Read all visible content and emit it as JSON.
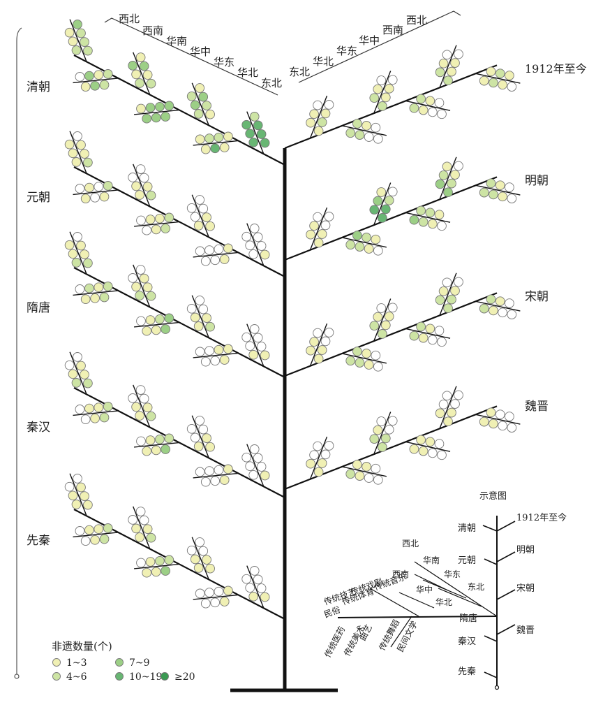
{
  "chart_data": {
    "type": "tree",
    "title": "",
    "period_labels_left": [
      "清朝",
      "元朝",
      "隋唐",
      "秦汉",
      "先秦"
    ],
    "period_labels_right": [
      "1912年至今",
      "明朝",
      "宋朝",
      "魏晋"
    ],
    "region_labels_top_left": [
      "西北",
      "西南",
      "华南",
      "华中",
      "华东",
      "华北",
      "东北"
    ],
    "region_labels_top_right": [
      "东北",
      "华北",
      "华东",
      "华中",
      "西南",
      "西北"
    ],
    "legend": {
      "title": "非遗数量(个)",
      "items": [
        {
          "label": "1~3",
          "level": 1,
          "color": "#f0f0b4"
        },
        {
          "label": "7~9",
          "level": 3,
          "color": "#9ccf86"
        },
        {
          "label": "4~6",
          "level": 2,
          "color": "#cde4a4"
        },
        {
          "label": "10~19",
          "level": 4,
          "color": "#68b673"
        },
        {
          "label": "≥20",
          "level": 5,
          "color": "#3a9a52"
        }
      ],
      "empty_color": "#ffffff"
    },
    "schematic": {
      "title": "示意图",
      "left_periods": [
        "清朝",
        "元朝",
        "隋唐",
        "秦汉",
        "先秦"
      ],
      "right_periods": [
        "1912年至今",
        "明朝",
        "宋朝",
        "魏晋"
      ],
      "regions": [
        "西北",
        "华南",
        "西南",
        "华东",
        "华中",
        "东北",
        "华北"
      ],
      "categories_upper": [
        "传统音乐",
        "传统戏剧",
        "传统体育",
        "传统技艺",
        "民俗"
      ],
      "categories_lower": [
        "传统医药",
        "传统美术",
        "曲艺",
        "传统舞蹈",
        "民间文学"
      ]
    },
    "branches": [
      {
        "period": "清朝",
        "side": "left",
        "counts": [
          [
            2,
            2,
            2,
            1,
            2,
            1,
            3,
            0,
            0,
            0
          ],
          [
            2,
            2,
            1,
            3,
            3,
            1,
            0,
            0,
            0,
            0
          ],
          [
            2,
            2,
            1,
            1,
            3,
            3,
            1,
            0,
            0,
            0
          ],
          [
            3,
            3,
            3,
            3,
            3,
            3,
            1,
            0,
            0,
            0
          ],
          [
            1,
            2,
            2,
            3,
            3,
            2,
            1,
            0,
            0,
            0
          ],
          [
            1,
            1,
            2,
            4,
            2,
            1,
            1,
            0,
            0,
            0
          ],
          [
            4,
            4,
            4,
            4,
            4,
            4,
            2,
            0,
            0,
            0
          ]
        ]
      },
      {
        "period": "元朝",
        "side": "left",
        "counts": [
          [
            2,
            1,
            1,
            1,
            1,
            1,
            0,
            0,
            0,
            0
          ],
          [
            2,
            1,
            0,
            0,
            1,
            1,
            0,
            0,
            0,
            0
          ],
          [
            2,
            1,
            1,
            1,
            0,
            0,
            0,
            0,
            0,
            0
          ],
          [
            2,
            2,
            1,
            1,
            1,
            0,
            0,
            0,
            0,
            0
          ],
          [
            1,
            1,
            1,
            0,
            0,
            0,
            0,
            0,
            0,
            0
          ],
          [
            1,
            1,
            0,
            0,
            0,
            0,
            0,
            0,
            0,
            0
          ],
          [
            1,
            0,
            0,
            0,
            0,
            0,
            0,
            0,
            0,
            0
          ]
        ]
      },
      {
        "period": "隋唐",
        "side": "left",
        "counts": [
          [
            2,
            2,
            1,
            1,
            1,
            1,
            0,
            0,
            0,
            0
          ],
          [
            2,
            2,
            1,
            1,
            2,
            1,
            0,
            0,
            0,
            0
          ],
          [
            2,
            2,
            1,
            1,
            1,
            0,
            0,
            0,
            0,
            0
          ],
          [
            3,
            3,
            2,
            1,
            1,
            1,
            0,
            0,
            0,
            0
          ],
          [
            2,
            1,
            1,
            1,
            0,
            0,
            0,
            0,
            0,
            0
          ],
          [
            1,
            1,
            1,
            0,
            0,
            0,
            0,
            0,
            0,
            0
          ],
          [
            1,
            1,
            0,
            0,
            0,
            0,
            0,
            0,
            0,
            0
          ]
        ]
      },
      {
        "period": "秦汉",
        "side": "left",
        "counts": [
          [
            2,
            2,
            1,
            1,
            1,
            0,
            0,
            0,
            0,
            0
          ],
          [
            2,
            2,
            1,
            1,
            1,
            0,
            0,
            0,
            0,
            0
          ],
          [
            2,
            1,
            1,
            1,
            0,
            0,
            0,
            0,
            0,
            0
          ],
          [
            2,
            3,
            2,
            1,
            1,
            1,
            0,
            0,
            0,
            0
          ],
          [
            1,
            1,
            1,
            0,
            0,
            0,
            0,
            0,
            0,
            0
          ],
          [
            1,
            1,
            0,
            0,
            0,
            0,
            0,
            0,
            0,
            0
          ],
          [
            1,
            0,
            0,
            0,
            0,
            0,
            0,
            0,
            0,
            0
          ]
        ]
      },
      {
        "period": "先秦",
        "side": "left",
        "counts": [
          [
            1,
            1,
            1,
            1,
            1,
            0,
            0,
            0,
            0,
            0
          ],
          [
            2,
            2,
            1,
            1,
            1,
            0,
            0,
            0,
            0,
            0
          ],
          [
            2,
            1,
            1,
            1,
            0,
            0,
            0,
            0,
            0,
            0
          ],
          [
            2,
            3,
            2,
            1,
            1,
            1,
            0,
            0,
            0,
            0
          ],
          [
            1,
            1,
            1,
            1,
            0,
            0,
            0,
            0,
            0,
            0
          ],
          [
            1,
            1,
            0,
            0,
            0,
            0,
            0,
            0,
            0,
            0
          ],
          [
            1,
            1,
            0,
            0,
            0,
            0,
            0,
            0,
            0,
            0
          ]
        ]
      },
      {
        "period": "1912年至今",
        "side": "right",
        "counts": [
          [
            1,
            1,
            2,
            1,
            1,
            0,
            0,
            0,
            0,
            0
          ],
          [
            2,
            2,
            2,
            1,
            0,
            0,
            0,
            0,
            0,
            0
          ],
          [
            2,
            2,
            1,
            1,
            1,
            0,
            0,
            0,
            0,
            0
          ],
          [
            2,
            2,
            1,
            1,
            0,
            0,
            0,
            0,
            0,
            0
          ],
          [
            2,
            2,
            1,
            1,
            1,
            0,
            0,
            0,
            0,
            0
          ],
          [
            1,
            1,
            2,
            2,
            1,
            1,
            0,
            0,
            0,
            0
          ]
        ]
      },
      {
        "period": "明朝",
        "side": "right",
        "counts": [
          [
            1,
            1,
            1,
            1,
            0,
            0,
            0,
            0,
            0,
            0
          ],
          [
            2,
            3,
            2,
            2,
            1,
            1,
            0,
            0,
            0,
            0
          ],
          [
            4,
            4,
            4,
            3,
            2,
            1,
            0,
            0,
            0,
            0
          ],
          [
            3,
            2,
            2,
            2,
            1,
            1,
            0,
            0,
            0,
            0
          ],
          [
            3,
            3,
            2,
            2,
            1,
            1,
            0,
            0,
            0,
            0
          ],
          [
            2,
            2,
            2,
            1,
            1,
            0,
            0,
            0,
            0,
            0
          ]
        ]
      },
      {
        "period": "宋朝",
        "side": "right",
        "counts": [
          [
            1,
            1,
            1,
            1,
            0,
            0,
            0,
            0,
            0,
            0
          ],
          [
            2,
            2,
            2,
            1,
            1,
            0,
            0,
            0,
            0,
            0
          ],
          [
            2,
            2,
            1,
            1,
            1,
            0,
            0,
            0,
            0,
            0
          ],
          [
            2,
            2,
            1,
            1,
            0,
            0,
            0,
            0,
            0,
            0
          ],
          [
            2,
            2,
            2,
            1,
            1,
            0,
            0,
            0,
            0,
            0
          ],
          [
            2,
            2,
            1,
            1,
            0,
            0,
            0,
            0,
            0,
            0
          ]
        ]
      },
      {
        "period": "魏晋",
        "side": "right",
        "counts": [
          [
            1,
            1,
            1,
            0,
            0,
            0,
            0,
            0,
            0,
            0
          ],
          [
            2,
            1,
            1,
            1,
            0,
            0,
            0,
            0,
            0,
            0
          ],
          [
            2,
            2,
            2,
            1,
            0,
            0,
            0,
            0,
            0,
            0
          ],
          [
            1,
            1,
            1,
            1,
            0,
            0,
            0,
            0,
            0,
            0
          ],
          [
            1,
            1,
            1,
            0,
            0,
            0,
            0,
            0,
            0,
            0
          ],
          [
            1,
            1,
            1,
            0,
            0,
            0,
            0,
            0,
            0,
            0
          ]
        ]
      }
    ]
  }
}
